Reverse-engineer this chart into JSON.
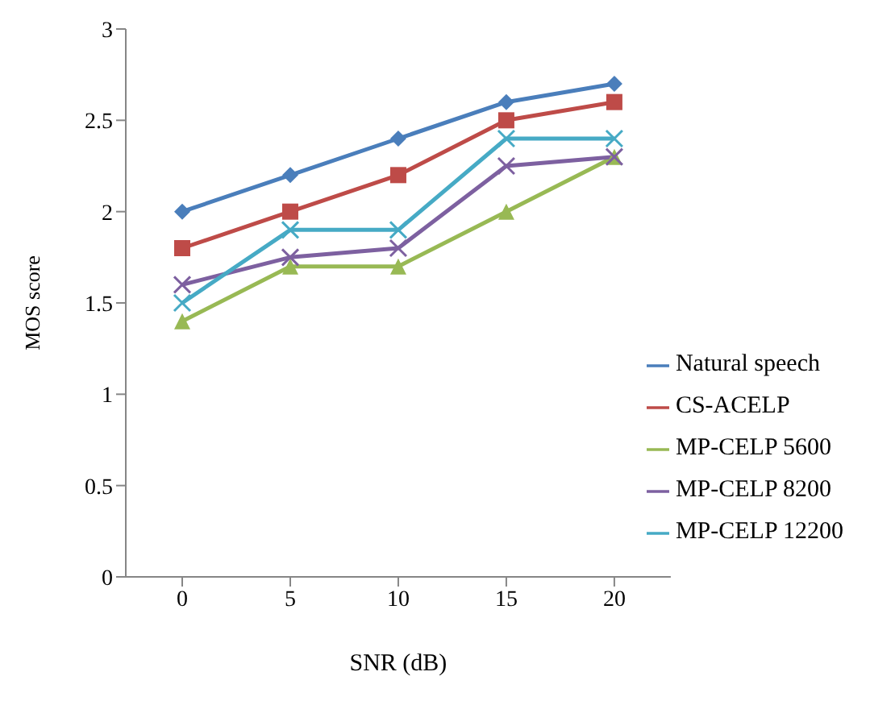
{
  "chart_data": {
    "type": "line",
    "xlabel": "SNR (dB)",
    "ylabel": "MOS score",
    "categories": [
      "0",
      "5",
      "10",
      "15",
      "20"
    ],
    "series": [
      {
        "name": "Natural speech",
        "color": "#4a7ebb",
        "marker": "diamond",
        "values": [
          2.0,
          2.2,
          2.4,
          2.6,
          2.7
        ]
      },
      {
        "name": "CS-ACELP",
        "color": "#be4b48",
        "marker": "square",
        "values": [
          1.8,
          2.0,
          2.2,
          2.5,
          2.6
        ]
      },
      {
        "name": "MP-CELP 5600",
        "color": "#98b954",
        "marker": "triangle",
        "values": [
          1.4,
          1.7,
          1.7,
          2.0,
          2.3
        ]
      },
      {
        "name": "MP-CELP 8200",
        "color": "#7d60a0",
        "marker": "cross",
        "values": [
          1.6,
          1.75,
          1.8,
          2.25,
          2.3
        ]
      },
      {
        "name": "MP-CELP 12200",
        "color": "#46aac5",
        "marker": "cross",
        "values": [
          1.5,
          1.9,
          1.9,
          2.4,
          2.4
        ]
      }
    ],
    "ylim": [
      0,
      3
    ],
    "yticks": [
      0,
      0.5,
      1,
      1.5,
      2,
      2.5,
      3
    ],
    "grid": false,
    "legend": "bottom right",
    "line_style": "solid"
  }
}
